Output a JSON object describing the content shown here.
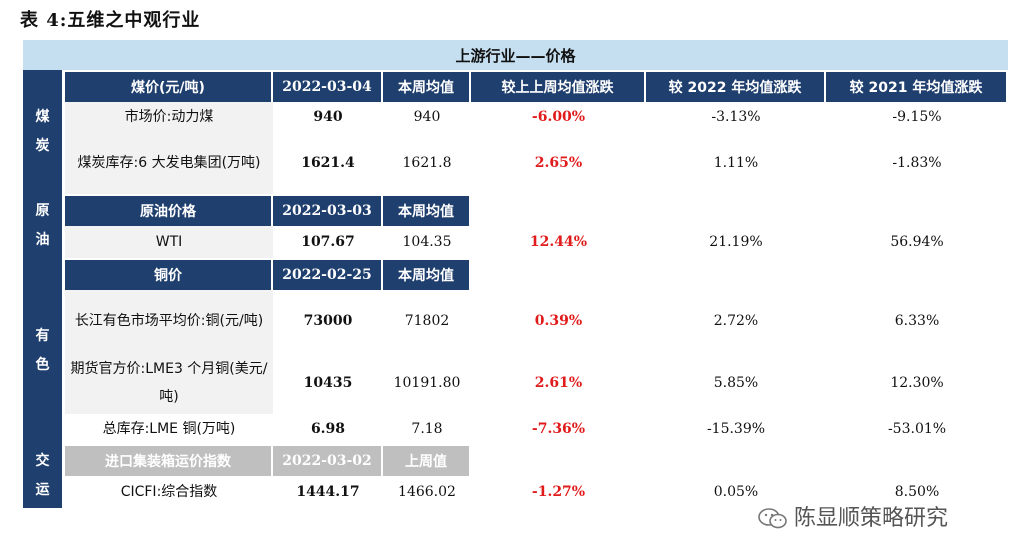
{
  "caption": "表 4:五维之中观行业",
  "banner": "上游行业——价格",
  "coal": {
    "side": [
      "煤",
      "炭"
    ],
    "header": [
      "煤价(元/吨)",
      "2022-03-04",
      "本周均值",
      "较上上周均值涨跌",
      "较 2022 年均值涨跌",
      "较 2021 年均值涨跌"
    ],
    "rows": [
      {
        "label": "市场价:动力煤",
        "latest": "940",
        "avg": "940",
        "wow": "-6.00%",
        "vs2022": "-3.13%",
        "vs2021": "-9.15%"
      },
      {
        "label": "煤炭库存:6 大发电集团(万吨)",
        "latest": "1621.4",
        "avg": "1621.8",
        "wow": "2.65%",
        "vs2022": "1.11%",
        "vs2021": "-1.83%"
      }
    ]
  },
  "oil": {
    "side": [
      "原",
      "油"
    ],
    "header": [
      "原油价格",
      "2022-03-03",
      "本周均值"
    ],
    "rows": [
      {
        "label": "WTI",
        "latest": "107.67",
        "avg": "104.35",
        "wow": "12.44%",
        "vs2022": "21.19%",
        "vs2021": "56.94%"
      }
    ]
  },
  "metal": {
    "side": [
      "有",
      "色"
    ],
    "header": [
      "铜价",
      "2022-02-25",
      "本周均值"
    ],
    "rows": [
      {
        "label": "长江有色市场平均价:铜(元/吨)",
        "latest": "73000",
        "avg": "71802",
        "wow": "0.39%",
        "vs2022": "2.72%",
        "vs2021": "6.33%"
      },
      {
        "label": "期货官方价:LME3 个月铜(美元/吨)",
        "latest": "10435",
        "avg": "10191.80",
        "wow": "2.61%",
        "vs2022": "5.85%",
        "vs2021": "12.30%"
      },
      {
        "label": "总库存:LME 铜(万吨)",
        "latest": "6.98",
        "avg": "7.18",
        "wow": "-7.36%",
        "vs2022": "-15.39%",
        "vs2021": "-53.01%"
      }
    ]
  },
  "transport": {
    "side": [
      "交",
      "运"
    ],
    "header": [
      "进口集装箱运价指数",
      "2022-03-02",
      "上周值"
    ],
    "rows": [
      {
        "label": "CICFI:综合指数",
        "latest": "1444.17",
        "avg": "1466.02",
        "wow": "-1.27%",
        "vs2022": "0.05%",
        "vs2021": "8.50%"
      }
    ]
  },
  "watermark": "陈显顺策略研究",
  "colors": {
    "header_navy": "#1f3f6e",
    "banner_blue": "#c5dff0",
    "label_grey": "#f2f2f2",
    "negative_red": "#e11b1b",
    "grey_header": "#bfbfbf"
  }
}
